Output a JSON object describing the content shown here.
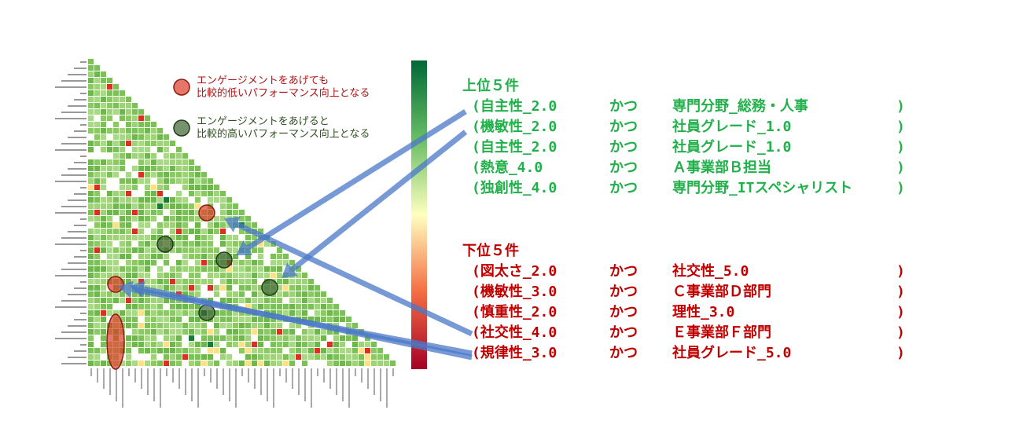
{
  "legend": [
    {
      "lines": [
        "エンゲージメントをあげても",
        "比較的低いパフォーマンス向上となる"
      ]
    },
    {
      "lines": [
        "エンゲージメントをあげると",
        "比較的高いパフォーマンス向上となる"
      ]
    }
  ],
  "top": {
    "heading": "上位５件",
    "rows": [
      [
        "(自主性_2.0",
        "かつ",
        "専門分野_総務・人事",
        ")"
      ],
      [
        "(機敏性_2.0",
        "かつ",
        "社員グレード_1.0",
        ")"
      ],
      [
        "(自主性_2.0",
        "かつ",
        "社員グレード_1.0",
        ")"
      ],
      [
        "(熱意_4.0",
        "かつ",
        "Ａ事業部Ｂ担当",
        ")"
      ],
      [
        "(独創性_4.0",
        "かつ",
        "専門分野_ITスペシャリスト",
        ")"
      ]
    ]
  },
  "bottom": {
    "heading": "下位５件",
    "rows": [
      [
        "(図太さ_2.0",
        "かつ",
        "社交性_5.0",
        ")"
      ],
      [
        "(機敏性_3.0",
        "かつ",
        "Ｃ事業部Ｄ部門",
        ")"
      ],
      [
        "(慎重性_2.0",
        "かつ",
        "理性_3.0",
        ")"
      ],
      [
        "(社交性_4.0",
        "かつ",
        "Ｅ事業部Ｆ部門",
        ")"
      ],
      [
        "(規律性_3.0",
        "かつ",
        "社員グレード_5.0",
        ")"
      ]
    ]
  }
}
